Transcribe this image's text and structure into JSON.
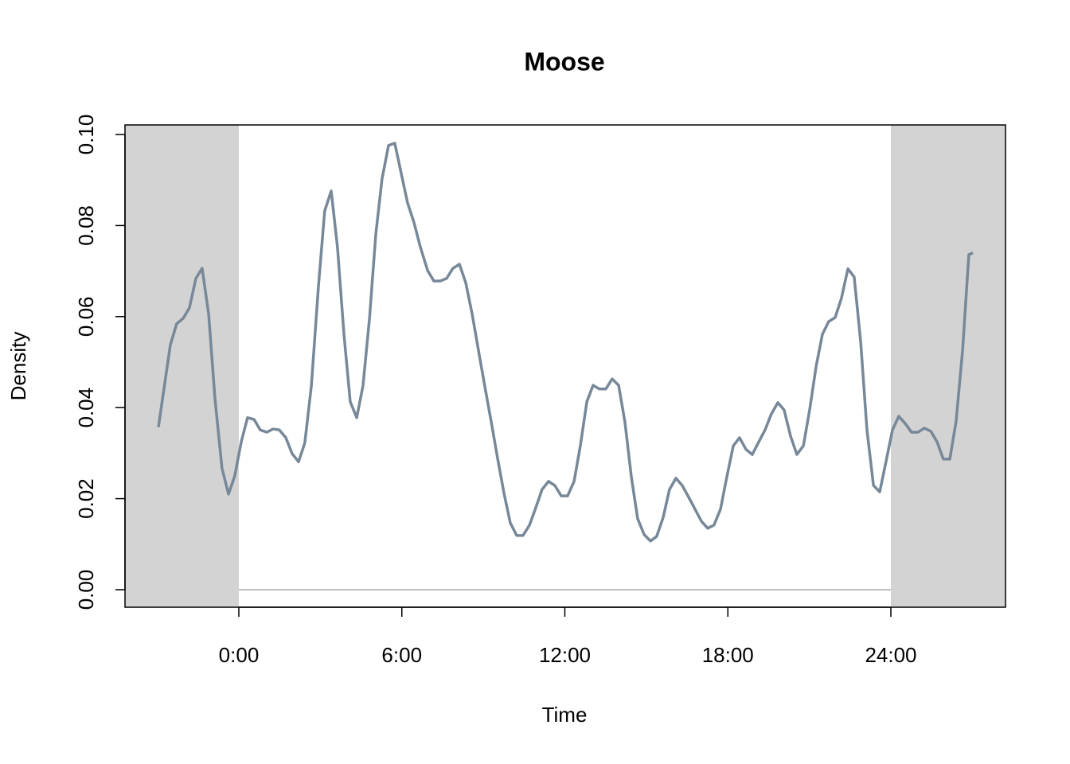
{
  "chart_data": {
    "type": "line",
    "title": "Moose",
    "x_label": "Time",
    "y_label": "Density",
    "x": [
      -2.96,
      -2.52,
      -2.29,
      -2.05,
      -1.82,
      -1.58,
      -1.35,
      -1.11,
      -0.88,
      -0.62,
      -0.38,
      -0.15,
      0.09,
      0.32,
      0.56,
      0.79,
      1.03,
      1.26,
      1.49,
      1.73,
      1.96,
      2.2,
      2.43,
      2.67,
      2.93,
      3.16,
      3.4,
      3.63,
      3.87,
      4.1,
      4.34,
      4.57,
      4.81,
      5.04,
      5.27,
      5.51,
      5.74,
      5.98,
      6.21,
      6.45,
      6.68,
      6.95,
      7.18,
      7.41,
      7.65,
      7.88,
      8.12,
      8.35,
      8.59,
      8.82,
      9.05,
      9.29,
      9.52,
      9.76,
      9.99,
      10.23,
      10.46,
      10.7,
      10.93,
      11.16,
      11.4,
      11.63,
      11.87,
      12.1,
      12.34,
      12.57,
      12.81,
      13.04,
      13.27,
      13.51,
      13.74,
      13.98,
      14.21,
      14.45,
      14.68,
      14.92,
      15.15,
      15.38,
      15.62,
      15.85,
      16.09,
      16.32,
      16.56,
      16.79,
      17.03,
      17.26,
      17.49,
      17.73,
      17.96,
      18.2,
      18.43,
      18.67,
      18.9,
      19.14,
      19.37,
      19.6,
      19.84,
      20.07,
      20.31,
      20.54,
      20.78,
      21.01,
      21.25,
      21.48,
      21.71,
      21.95,
      22.18,
      22.42,
      22.65,
      22.89,
      23.12,
      23.36,
      23.59,
      23.82,
      24.06,
      24.29,
      24.53,
      24.76,
      25.0,
      25.23,
      25.47,
      25.7,
      25.93,
      26.17,
      26.4,
      26.64,
      26.87,
      27.02
    ],
    "series": [
      {
        "color": "#778899",
        "values": [
          0.0357,
          0.0538,
          0.0584,
          0.0596,
          0.0619,
          0.0684,
          0.0706,
          0.0605,
          0.0421,
          0.0267,
          0.021,
          0.025,
          0.0325,
          0.0378,
          0.0374,
          0.0351,
          0.0346,
          0.0353,
          0.0351,
          0.0334,
          0.0299,
          0.0281,
          0.0323,
          0.0448,
          0.0666,
          0.0832,
          0.0876,
          0.0753,
          0.0561,
          0.0413,
          0.0378,
          0.0448,
          0.0596,
          0.078,
          0.0902,
          0.0976,
          0.0981,
          0.0914,
          0.085,
          0.0806,
          0.0753,
          0.0701,
          0.0678,
          0.0678,
          0.0684,
          0.0706,
          0.0715,
          0.0675,
          0.0605,
          0.0526,
          0.0448,
          0.0369,
          0.029,
          0.0212,
          0.0147,
          0.0119,
          0.0119,
          0.0142,
          0.018,
          0.022,
          0.0238,
          0.0229,
          0.0206,
          0.0206,
          0.0238,
          0.0316,
          0.0413,
          0.0449,
          0.0441,
          0.0441,
          0.0463,
          0.0449,
          0.0369,
          0.0247,
          0.0156,
          0.0121,
          0.0107,
          0.0117,
          0.0159,
          0.022,
          0.0245,
          0.0229,
          0.0203,
          0.0177,
          0.015,
          0.0135,
          0.0142,
          0.0177,
          0.0247,
          0.0316,
          0.0334,
          0.0308,
          0.0297,
          0.0325,
          0.0351,
          0.0386,
          0.0411,
          0.0395,
          0.0337,
          0.0297,
          0.0316,
          0.0395,
          0.0491,
          0.0561,
          0.0589,
          0.0598,
          0.064,
          0.0705,
          0.0687,
          0.0544,
          0.0351,
          0.0229,
          0.0215,
          0.0281,
          0.0351,
          0.0381,
          0.0365,
          0.0346,
          0.0346,
          0.0355,
          0.0348,
          0.0325,
          0.0287,
          0.0287,
          0.0369,
          0.0526,
          0.0736,
          0.074
        ]
      }
    ],
    "xlim": [
      -4.19,
      28.22
    ],
    "xticks": [
      {
        "value": 0,
        "label": "0:00"
      },
      {
        "value": 6,
        "label": "6:00"
      },
      {
        "value": 12,
        "label": "12:00"
      },
      {
        "value": 18,
        "label": "18:00"
      },
      {
        "value": 24,
        "label": "24:00"
      }
    ],
    "ylim": [
      -0.00385,
      0.1021
    ],
    "yticks": [
      {
        "value": 0,
        "label": "0.00"
      },
      0.02,
      0.04,
      0.06,
      0.08,
      {
        "value": 0.1,
        "label": "0.10"
      }
    ],
    "shade_color": "#d3d3d3"
  }
}
